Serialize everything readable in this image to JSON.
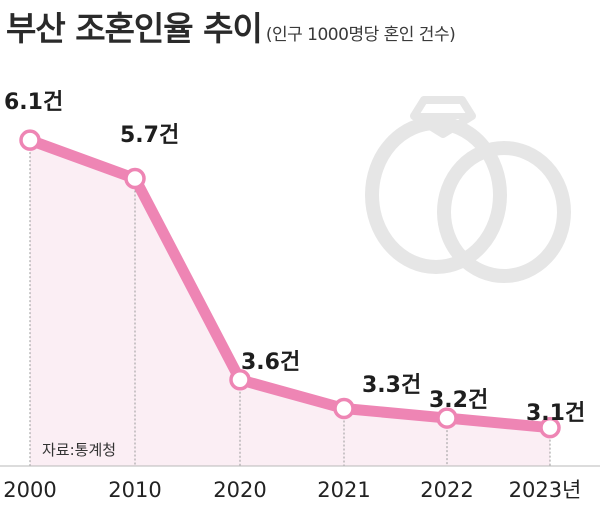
{
  "title": "부산 조혼인율 추이",
  "subtitle": "(인구 1000명당 혼인 건수)",
  "source": "자료:통계청",
  "colors": {
    "line": "#ee85b4",
    "area": "#fbeef4",
    "marker_fill": "#ffffff",
    "rings": "#e6e6e6"
  },
  "decoration_icon": "wedding-rings-icon",
  "chart_data": {
    "type": "line",
    "categories": [
      "2000",
      "2010",
      "2020",
      "2021",
      "2022",
      "2023년"
    ],
    "values": [
      6.1,
      5.7,
      3.6,
      3.3,
      3.2,
      3.1
    ],
    "value_labels": [
      "6.1건",
      "5.7건",
      "3.6건",
      "3.3건",
      "3.2건",
      "3.1건"
    ],
    "unit": "건",
    "title": "부산 조혼인율 추이",
    "subtitle": "(인구 1000명당 혼인 건수)",
    "ylim": [
      2.7,
      6.3
    ],
    "grid": false,
    "legend": "none"
  }
}
